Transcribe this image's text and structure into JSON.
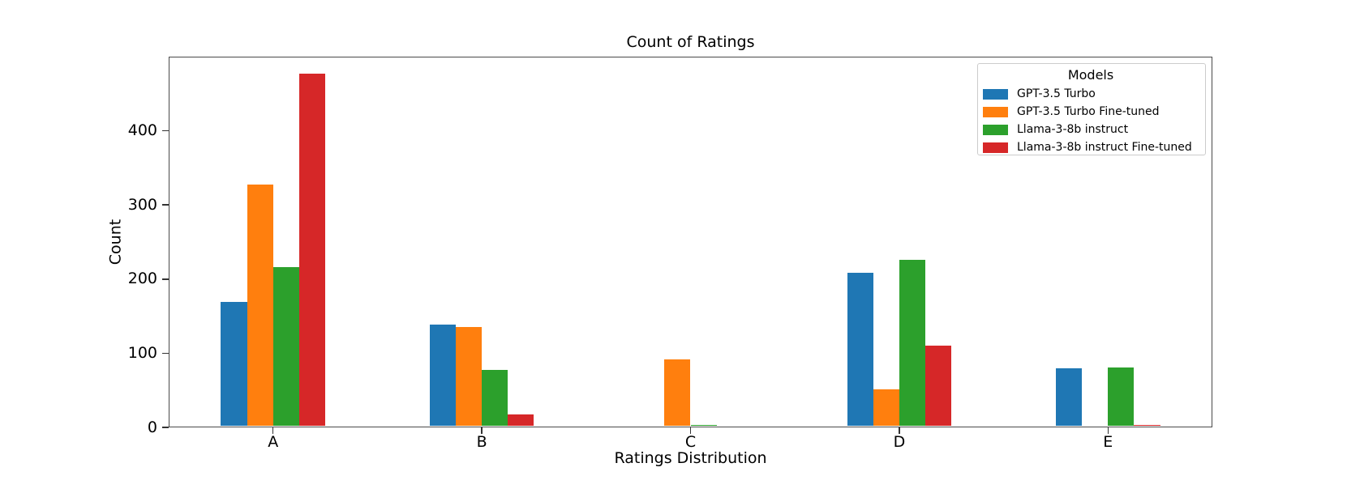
{
  "chart_data": {
    "type": "bar",
    "title": "Count of Ratings",
    "xlabel": "Ratings Distribution",
    "ylabel": "Count",
    "categories": [
      "A",
      "B",
      "C",
      "D",
      "E"
    ],
    "series": [
      {
        "name": "GPT-3.5 Turbo",
        "color": "#1f77b4",
        "values": [
          168,
          137,
          0,
          207,
          78
        ]
      },
      {
        "name": "GPT-3.5 Turbo Fine-tuned",
        "color": "#ff7f0e",
        "values": [
          326,
          134,
          90,
          50,
          0
        ]
      },
      {
        "name": "Llama-3-8b instruct",
        "color": "#2ca02c",
        "values": [
          214,
          76,
          2,
          224,
          79
        ]
      },
      {
        "name": "Llama-3-8b instruct Fine-tuned",
        "color": "#d62728",
        "values": [
          475,
          16,
          0,
          109,
          2
        ]
      }
    ],
    "ylim": [
      0,
      500
    ],
    "yticks": [
      0,
      100,
      200,
      300,
      400
    ],
    "grid": false,
    "legend": {
      "title": "Models",
      "position": "upper right"
    }
  }
}
